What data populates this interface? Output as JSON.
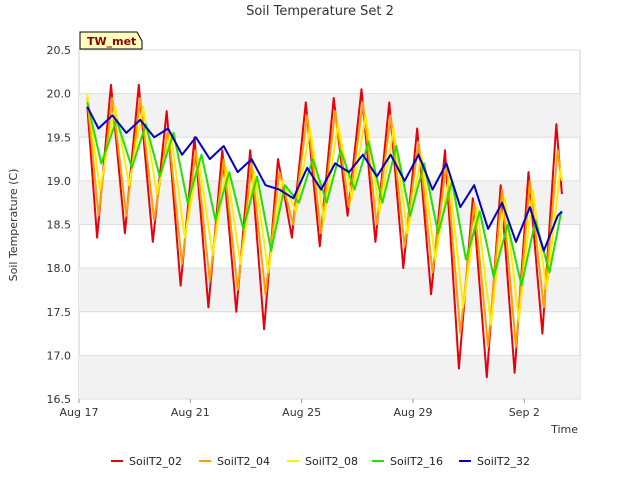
{
  "chart_data": {
    "type": "line",
    "title": "Soil Temperature Set 2",
    "xlabel": "Time",
    "ylabel": "Soil Temperature (C)",
    "badge": "TW_met",
    "x_ticks": [
      "Aug 17",
      "Aug 21",
      "Aug 25",
      "Aug 29",
      "Sep 2"
    ],
    "x_tick_days": [
      0,
      4,
      8,
      12,
      16
    ],
    "xlim_days": [
      0,
      18
    ],
    "ylim": [
      16.5,
      20.5
    ],
    "y_ticks": [
      "16.5",
      "17.0",
      "17.5",
      "18.0",
      "18.5",
      "19.0",
      "19.5",
      "20.0",
      "20.5"
    ],
    "grid": true,
    "legend_position": "bottom",
    "colors": {
      "SoilT2_02": "#e8000b",
      "SoilT2_04": "#ff9e00",
      "SoilT2_08": "#ffee00",
      "SoilT2_16": "#22e000",
      "SoilT2_32": "#0000cc"
    },
    "series": [
      {
        "name": "SoilT2_02",
        "points": [
          [
            0.3,
            19.85
          ],
          [
            0.65,
            18.35
          ],
          [
            1.15,
            20.1
          ],
          [
            1.65,
            18.4
          ],
          [
            2.15,
            20.1
          ],
          [
            2.65,
            18.3
          ],
          [
            3.15,
            19.8
          ],
          [
            3.65,
            17.8
          ],
          [
            4.15,
            19.5
          ],
          [
            4.65,
            17.55
          ],
          [
            5.15,
            19.35
          ],
          [
            5.65,
            17.5
          ],
          [
            6.15,
            19.35
          ],
          [
            6.65,
            17.3
          ],
          [
            7.15,
            19.25
          ],
          [
            7.65,
            18.35
          ],
          [
            8.15,
            19.9
          ],
          [
            8.65,
            18.25
          ],
          [
            9.15,
            19.95
          ],
          [
            9.65,
            18.6
          ],
          [
            10.15,
            20.05
          ],
          [
            10.65,
            18.3
          ],
          [
            11.15,
            19.9
          ],
          [
            11.65,
            18.0
          ],
          [
            12.15,
            19.6
          ],
          [
            12.65,
            17.7
          ],
          [
            13.15,
            19.35
          ],
          [
            13.65,
            16.85
          ],
          [
            14.15,
            18.8
          ],
          [
            14.65,
            16.75
          ],
          [
            15.15,
            18.95
          ],
          [
            15.65,
            16.8
          ],
          [
            16.15,
            19.1
          ],
          [
            16.65,
            17.25
          ],
          [
            17.15,
            19.65
          ],
          [
            17.35,
            18.85
          ]
        ]
      },
      {
        "name": "SoilT2_04",
        "points": [
          [
            0.3,
            19.95
          ],
          [
            0.7,
            18.6
          ],
          [
            1.2,
            19.95
          ],
          [
            1.7,
            18.6
          ],
          [
            2.2,
            19.95
          ],
          [
            2.7,
            18.55
          ],
          [
            3.2,
            19.6
          ],
          [
            3.7,
            18.05
          ],
          [
            4.2,
            19.35
          ],
          [
            4.7,
            17.85
          ],
          [
            5.2,
            19.25
          ],
          [
            5.7,
            17.75
          ],
          [
            6.2,
            19.2
          ],
          [
            6.7,
            17.7
          ],
          [
            7.2,
            19.1
          ],
          [
            7.7,
            18.5
          ],
          [
            8.2,
            19.75
          ],
          [
            8.7,
            18.4
          ],
          [
            9.2,
            19.8
          ],
          [
            9.7,
            18.7
          ],
          [
            10.2,
            19.9
          ],
          [
            10.7,
            18.5
          ],
          [
            11.2,
            19.75
          ],
          [
            11.7,
            18.25
          ],
          [
            12.2,
            19.45
          ],
          [
            12.7,
            17.95
          ],
          [
            13.2,
            19.2
          ],
          [
            13.7,
            17.25
          ],
          [
            14.2,
            18.75
          ],
          [
            14.7,
            17.1
          ],
          [
            15.2,
            18.9
          ],
          [
            15.7,
            17.1
          ],
          [
            16.2,
            19.0
          ],
          [
            16.7,
            17.55
          ],
          [
            17.2,
            19.35
          ],
          [
            17.35,
            19.0
          ]
        ]
      },
      {
        "name": "SoilT2_08",
        "points": [
          [
            0.3,
            20.0
          ],
          [
            0.75,
            18.9
          ],
          [
            1.3,
            19.85
          ],
          [
            1.8,
            18.95
          ],
          [
            2.3,
            19.85
          ],
          [
            2.8,
            18.85
          ],
          [
            3.3,
            19.55
          ],
          [
            3.8,
            18.35
          ],
          [
            4.3,
            19.25
          ],
          [
            4.8,
            18.15
          ],
          [
            5.3,
            19.15
          ],
          [
            5.8,
            18.05
          ],
          [
            6.3,
            19.1
          ],
          [
            6.8,
            17.95
          ],
          [
            7.3,
            19.0
          ],
          [
            7.8,
            18.65
          ],
          [
            8.3,
            19.6
          ],
          [
            8.8,
            18.55
          ],
          [
            9.3,
            19.65
          ],
          [
            9.8,
            18.8
          ],
          [
            10.3,
            19.75
          ],
          [
            10.8,
            18.65
          ],
          [
            11.3,
            19.6
          ],
          [
            11.8,
            18.4
          ],
          [
            12.3,
            19.3
          ],
          [
            12.8,
            18.1
          ],
          [
            13.3,
            19.05
          ],
          [
            13.8,
            17.55
          ],
          [
            14.3,
            18.7
          ],
          [
            14.8,
            17.35
          ],
          [
            15.3,
            18.8
          ],
          [
            15.8,
            17.4
          ],
          [
            16.3,
            18.9
          ],
          [
            16.8,
            17.75
          ],
          [
            17.3,
            19.15
          ],
          [
            17.35,
            19.0
          ]
        ]
      },
      {
        "name": "SoilT2_16",
        "points": [
          [
            0.3,
            19.9
          ],
          [
            0.8,
            19.2
          ],
          [
            1.35,
            19.7
          ],
          [
            1.9,
            19.15
          ],
          [
            2.4,
            19.65
          ],
          [
            2.9,
            19.05
          ],
          [
            3.4,
            19.55
          ],
          [
            3.9,
            18.75
          ],
          [
            4.4,
            19.3
          ],
          [
            4.9,
            18.55
          ],
          [
            5.4,
            19.1
          ],
          [
            5.9,
            18.45
          ],
          [
            6.4,
            19.05
          ],
          [
            6.9,
            18.2
          ],
          [
            7.4,
            18.95
          ],
          [
            7.9,
            18.75
          ],
          [
            8.4,
            19.25
          ],
          [
            8.9,
            18.75
          ],
          [
            9.4,
            19.35
          ],
          [
            9.9,
            18.9
          ],
          [
            10.4,
            19.45
          ],
          [
            10.9,
            18.75
          ],
          [
            11.4,
            19.4
          ],
          [
            11.9,
            18.6
          ],
          [
            12.4,
            19.2
          ],
          [
            12.9,
            18.4
          ],
          [
            13.4,
            19.0
          ],
          [
            13.9,
            18.1
          ],
          [
            14.4,
            18.65
          ],
          [
            14.9,
            17.9
          ],
          [
            15.4,
            18.5
          ],
          [
            15.9,
            17.8
          ],
          [
            16.4,
            18.55
          ],
          [
            16.9,
            17.95
          ],
          [
            17.3,
            18.6
          ],
          [
            17.35,
            18.65
          ]
        ]
      },
      {
        "name": "SoilT2_32",
        "points": [
          [
            0.3,
            19.85
          ],
          [
            0.7,
            19.6
          ],
          [
            1.2,
            19.75
          ],
          [
            1.7,
            19.55
          ],
          [
            2.2,
            19.7
          ],
          [
            2.7,
            19.5
          ],
          [
            3.2,
            19.6
          ],
          [
            3.7,
            19.3
          ],
          [
            4.2,
            19.5
          ],
          [
            4.7,
            19.25
          ],
          [
            5.2,
            19.4
          ],
          [
            5.7,
            19.1
          ],
          [
            6.2,
            19.25
          ],
          [
            6.7,
            18.95
          ],
          [
            7.2,
            18.9
          ],
          [
            7.7,
            18.8
          ],
          [
            8.2,
            19.15
          ],
          [
            8.7,
            18.9
          ],
          [
            9.2,
            19.2
          ],
          [
            9.7,
            19.1
          ],
          [
            10.2,
            19.3
          ],
          [
            10.7,
            19.05
          ],
          [
            11.2,
            19.3
          ],
          [
            11.7,
            19.0
          ],
          [
            12.2,
            19.3
          ],
          [
            12.7,
            18.9
          ],
          [
            13.2,
            19.2
          ],
          [
            13.7,
            18.7
          ],
          [
            14.2,
            18.95
          ],
          [
            14.7,
            18.45
          ],
          [
            15.2,
            18.75
          ],
          [
            15.7,
            18.3
          ],
          [
            16.2,
            18.7
          ],
          [
            16.7,
            18.2
          ],
          [
            17.2,
            18.6
          ],
          [
            17.35,
            18.65
          ]
        ]
      }
    ]
  }
}
